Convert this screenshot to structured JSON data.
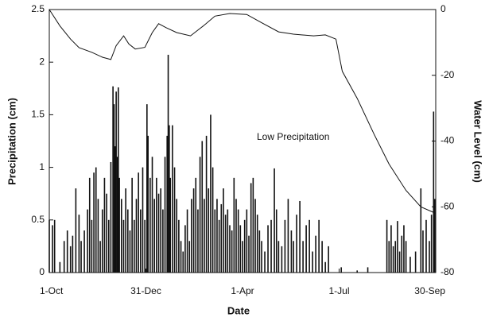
{
  "chart_data": {
    "type": "bar",
    "xlabel": "Date",
    "ylabel": "Precipitation (cm)",
    "y2label": "Water Level (cm)",
    "annotation": "Low Precipitation",
    "xlim": [
      0,
      364
    ],
    "xticks": [
      {
        "value": 0,
        "label": "1-Oct"
      },
      {
        "value": 91,
        "label": "31-Dec"
      },
      {
        "value": 182,
        "label": "1-Apr"
      },
      {
        "value": 273,
        "label": "1-Jul"
      },
      {
        "value": 364,
        "label": "30-Sep"
      }
    ],
    "ylim": [
      0,
      2.5
    ],
    "yticks": [
      0,
      0.5,
      1,
      1.5,
      2,
      2.5
    ],
    "y2lim": [
      -80,
      0
    ],
    "y2ticks": [
      0,
      -20,
      -40,
      -60,
      -80
    ],
    "series": [
      {
        "type": "bar",
        "color": "#111111",
        "x": [
          0,
          3,
          5,
          10,
          14,
          17,
          20,
          22,
          25,
          28,
          30,
          33,
          36,
          38,
          40,
          42,
          44,
          46,
          48,
          50,
          52,
          54,
          56,
          58,
          60,
          61,
          62,
          63,
          64,
          65,
          66,
          68,
          70,
          72,
          74,
          76,
          78,
          80,
          82,
          84,
          86,
          88,
          90,
          92,
          93,
          95,
          97,
          99,
          101,
          103,
          105,
          107,
          109,
          111,
          112,
          113,
          114,
          116,
          118,
          120,
          122,
          124,
          126,
          128,
          130,
          132,
          134,
          136,
          138,
          140,
          142,
          144,
          146,
          148,
          150,
          152,
          154,
          156,
          158,
          160,
          162,
          164,
          166,
          168,
          170,
          172,
          174,
          176,
          178,
          180,
          182,
          184,
          186,
          188,
          190,
          192,
          194,
          196,
          198,
          200,
          203,
          206,
          209,
          212,
          214,
          216,
          219,
          222,
          225,
          228,
          230,
          233,
          236,
          239,
          242,
          245,
          248,
          251,
          254,
          257,
          260,
          263,
          275,
          290,
          300,
          318,
          320,
          322,
          324,
          326,
          328,
          330,
          332,
          334,
          336,
          340,
          345,
          350,
          352,
          355,
          358,
          360,
          362,
          363
        ],
        "values": [
          0.5,
          0.45,
          0.5,
          0.1,
          0.3,
          0.4,
          0.25,
          0.35,
          0.8,
          0.55,
          0.3,
          0.4,
          0.6,
          0.9,
          0.5,
          0.95,
          1.0,
          0.7,
          0.3,
          0.6,
          0.9,
          0.75,
          0.5,
          1.05,
          1.77,
          1.6,
          1.2,
          1.72,
          1.1,
          1.76,
          0.9,
          0.7,
          0.5,
          0.8,
          0.6,
          0.4,
          0.9,
          0.5,
          0.7,
          0.95,
          0.6,
          1.0,
          0.5,
          1.6,
          1.3,
          0.9,
          1.1,
          0.7,
          0.9,
          0.75,
          0.8,
          0.6,
          1.1,
          1.3,
          2.07,
          1.4,
          0.9,
          1.4,
          1.0,
          0.7,
          0.5,
          0.3,
          0.2,
          0.45,
          0.6,
          0.3,
          0.7,
          0.8,
          0.9,
          0.6,
          1.1,
          1.25,
          0.7,
          1.3,
          0.8,
          1.5,
          1.0,
          0.6,
          0.7,
          0.5,
          0.65,
          0.8,
          0.55,
          0.6,
          0.45,
          0.4,
          0.9,
          0.7,
          0.6,
          0.45,
          0.3,
          0.5,
          0.6,
          0.35,
          0.85,
          0.9,
          0.7,
          0.55,
          0.4,
          0.3,
          0.2,
          0.45,
          0.5,
          0.99,
          0.6,
          0.3,
          0.25,
          0.5,
          0.7,
          0.4,
          0.3,
          0.55,
          0.68,
          0.3,
          0.45,
          0.5,
          0.2,
          0.35,
          0.5,
          0.3,
          0.1,
          0.25,
          0.05,
          0.02,
          0.05,
          0.5,
          0.3,
          0.45,
          0.25,
          0.3,
          0.49,
          0.2,
          0.35,
          0.45,
          0.3,
          0.15,
          0.2,
          0.8,
          0.4,
          0.5,
          0.3,
          0.55,
          1.53,
          0.7
        ]
      },
      {
        "type": "line",
        "axis": "y2",
        "color": "#111111",
        "x": [
          0,
          10,
          20,
          28,
          40,
          50,
          58,
          63,
          70,
          75,
          81,
          90,
          97,
          103,
          110,
          120,
          133,
          145,
          156,
          170,
          186,
          200,
          216,
          230,
          249,
          260,
          270,
          276,
          290,
          306,
          320,
          336,
          350,
          364
        ],
        "values": [
          0,
          -5,
          -9,
          -11.6,
          -13,
          -14.5,
          -15.2,
          -11,
          -8,
          -10.5,
          -12,
          -11.5,
          -7,
          -4.3,
          -5.5,
          -7,
          -8,
          -5,
          -2,
          -1.2,
          -1.5,
          -4,
          -6.8,
          -7.5,
          -8,
          -7.7,
          -9,
          -18.8,
          -27,
          -38,
          -47,
          -55,
          -60,
          -62
        ]
      }
    ]
  }
}
